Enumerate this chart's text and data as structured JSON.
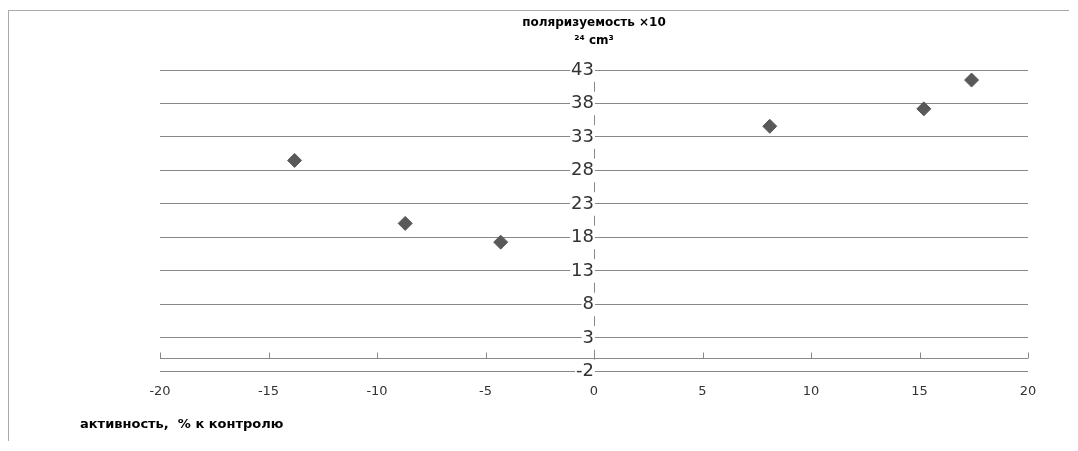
{
  "chart_data": {
    "type": "scatter",
    "xlabel": "активность,  % к контролю",
    "ylabel": "поляризуемость ×10 ²⁴ cm³",
    "x": [
      -13.8,
      -8.7,
      -4.3,
      8.1,
      15.2,
      17.4
    ],
    "series": [
      {
        "color": "#595959",
        "values": [
          29.5,
          20.1,
          17.3,
          34.6,
          37.2,
          41.5
        ]
      }
    ],
    "xlim": [
      -20,
      20
    ],
    "xticks": [
      -20,
      -15,
      -10,
      -5,
      0,
      5,
      10,
      15,
      20
    ],
    "ylim": [
      -2,
      43
    ],
    "yticks": [
      -2,
      3,
      8,
      13,
      18,
      23,
      28,
      33,
      38,
      43
    ],
    "grid": "y",
    "marker": "diamond",
    "legend": false
  }
}
